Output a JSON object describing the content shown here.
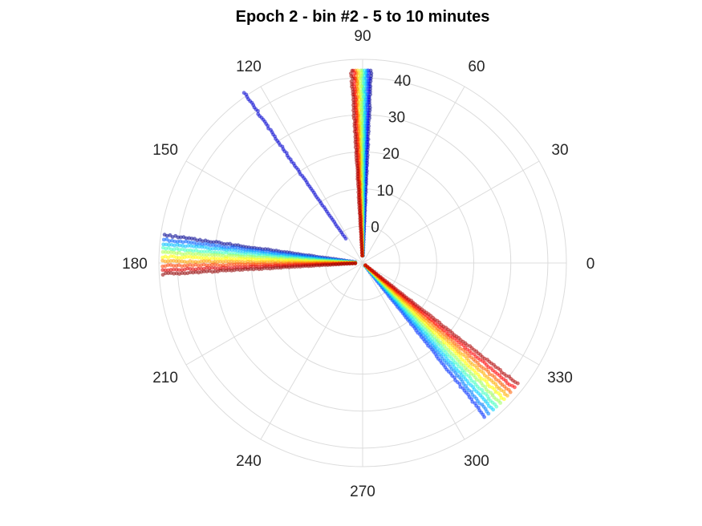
{
  "chart_data": {
    "type": "scatter",
    "projection": "polar",
    "title": "Epoch 2 - bin #2 - 5 to 10 minutes",
    "angular_ticks": [
      "0",
      "30",
      "60",
      "90",
      "120",
      "150",
      "180",
      "210",
      "240",
      "270",
      "300",
      "330"
    ],
    "angular_tick_values": [
      0,
      30,
      60,
      90,
      120,
      150,
      180,
      210,
      240,
      270,
      300,
      330
    ],
    "radial_ticks": [
      "0",
      "10",
      "20",
      "30",
      "40"
    ],
    "radial_tick_values": [
      0,
      10,
      20,
      30,
      40
    ],
    "radial_range": [
      -10,
      45
    ],
    "radial_tick_angle_deg": 81,
    "grid": true,
    "colormap": "jet",
    "point_opacity": 0.55,
    "series": [
      {
        "angles": [
          87.5,
          88.2,
          88.8,
          89.4,
          90.0,
          90.6,
          91.4,
          92.0,
          92.6,
          93.3
        ],
        "colors": [
          "#00008f",
          "#0000ff",
          "#006fff",
          "#00dfff",
          "#4fffaf",
          "#bfff3f",
          "#ffdf00",
          "#ff6f00",
          "#ff0000",
          "#9f0000"
        ],
        "r_start": -8,
        "r_end": 42
      },
      {
        "angles": [
          124.8
        ],
        "colors": [
          "#0000cf"
        ],
        "r_start": -2,
        "r_end": 46
      },
      {
        "angles": [
          172.0,
          173.3,
          174.5,
          175.8,
          177.0,
          178.2,
          179.5,
          180.8,
          182.0,
          183.2
        ],
        "colors": [
          "#00008f",
          "#005fff",
          "#00bfff",
          "#3fffbf",
          "#afff4f",
          "#ffff00",
          "#ff9f00",
          "#ff3f00",
          "#df0000",
          "#8f0000"
        ],
        "r_start": -8,
        "r_end": 44
      },
      {
        "angles": [
          308.5,
          310.0,
          311.5,
          313.0,
          314.5,
          316.0,
          317.5,
          319.0,
          320.5,
          322.0
        ],
        "colors": [
          "#002fff",
          "#007fff",
          "#00cfff",
          "#3fffbf",
          "#9fff5f",
          "#ffff00",
          "#ffaf00",
          "#ff5f00",
          "#ff0000",
          "#af0000"
        ],
        "r_start": -9,
        "r_end": 43
      }
    ]
  }
}
